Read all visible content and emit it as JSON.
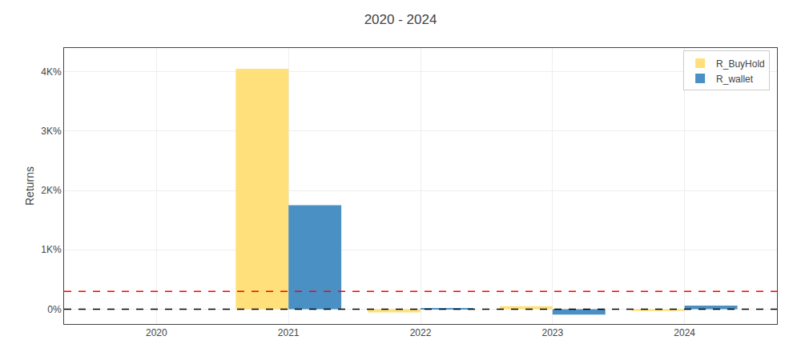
{
  "chart_data": {
    "type": "bar",
    "title": "2020 - 2024",
    "y_label": "Returns",
    "x": [
      2020,
      2021,
      2022,
      2023,
      2024
    ],
    "series": [
      {
        "name": "R_BuyHold",
        "color": "#FFE07A",
        "values": [
          0.0,
          4050.0,
          -55.0,
          50.0,
          -30.0
        ]
      },
      {
        "name": "R_wallet",
        "color": "#4A90C4",
        "values": [
          0.0,
          1750.0,
          20.0,
          -90.0,
          60.0
        ]
      }
    ],
    "hlines": [
      {
        "y": 300,
        "color": "red",
        "line_style": "dashed"
      },
      {
        "y": 0,
        "color": "black",
        "line_style": "dashed"
      }
    ],
    "xlim": [
      2019.3,
      2024.7
    ],
    "xticks": [
      2020,
      2021,
      2022,
      2023,
      2024
    ],
    "ylim": [
      -250,
      4400
    ],
    "yticks": [
      {
        "value": 0,
        "label": "0%"
      },
      {
        "value": 1000,
        "label": "1K%"
      },
      {
        "value": 2000,
        "label": "2K%"
      },
      {
        "value": 3000,
        "label": "3K%"
      },
      {
        "value": 4000,
        "label": "4K%"
      }
    ],
    "grid": true,
    "legend": "upper right"
  }
}
